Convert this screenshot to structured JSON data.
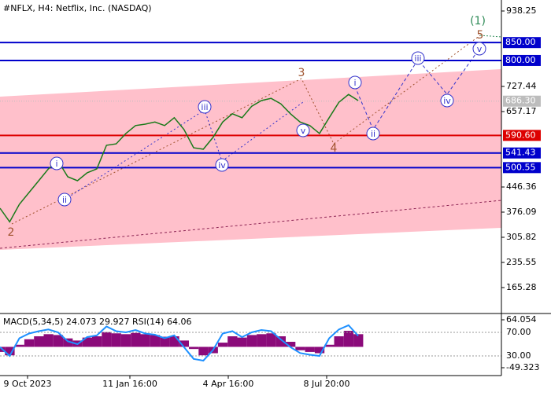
{
  "chart_data": [
    {
      "type": "line",
      "title": "#NFLX, H4:  Netflix, Inc. (NASDAQ)",
      "color": "#1a7a1a",
      "values": [
        387,
        349,
        398,
        431,
        464,
        497,
        519,
        475,
        464,
        486,
        497,
        563,
        567,
        596,
        618,
        622,
        628,
        618,
        640,
        607,
        556,
        552,
        585,
        628,
        651,
        640,
        672,
        688,
        694,
        679,
        651,
        628,
        618,
        596,
        640,
        683,
        705,
        688
      ],
      "ylim": [
        95.01,
        968.99
      ],
      "yticks": [
        938.25,
        727.44,
        657.17,
        446.36,
        376.09,
        305.82,
        235.55,
        165.28
      ],
      "levels": [
        {
          "value": 850,
          "label": "850.00",
          "color": "#0000cc"
        },
        {
          "value": 800,
          "label": "800.00",
          "color": "#0000cc"
        },
        {
          "value": 590.6,
          "label": "590.60",
          "color": "#dd0000"
        },
        {
          "value": 541.43,
          "label": "541.43",
          "color": "#0000cc"
        },
        {
          "value": 500.55,
          "label": "500.55",
          "color": "#0000cc"
        }
      ],
      "current": {
        "value": 686.3,
        "label": "686.30",
        "color": "#bdbdbd"
      },
      "x_labels": [
        "9 Oct 2023",
        "11 Jan 16:00",
        "4 Apr 16:00",
        "8 Jul 20:00"
      ],
      "wave_labels": [
        "2",
        "3",
        "4",
        "5",
        "(1)"
      ],
      "circle_labels": [
        "i",
        "ii",
        "iii",
        "iv",
        "v",
        "i",
        "ii",
        "iii",
        "iv",
        "v"
      ]
    },
    {
      "type": "bar",
      "title": "MACD(5,34,5) 24.073 29.927 RSI(14) 64.06",
      "color": "#8b0a7a",
      "values": [
        -12,
        -20,
        5,
        18,
        25,
        30,
        28,
        20,
        15,
        22,
        25,
        35,
        32,
        30,
        33,
        30,
        28,
        24,
        25,
        15,
        -5,
        -20,
        -15,
        10,
        25,
        22,
        28,
        30,
        32,
        25,
        12,
        -8,
        -12,
        -15,
        5,
        25,
        38,
        30
      ],
      "ylim": [
        -49.323,
        64.054
      ],
      "yticks": [
        64.054,
        -49.323
      ],
      "rsi": {
        "axis": "y2",
        "color": "#1e90ff",
        "values": [
          45,
          30,
          60,
          68,
          72,
          75,
          70,
          55,
          50,
          62,
          65,
          80,
          72,
          70,
          74,
          68,
          66,
          60,
          65,
          45,
          25,
          22,
          40,
          68,
          72,
          62,
          70,
          74,
          72,
          58,
          45,
          35,
          32,
          30,
          60,
          75,
          82,
          64
        ]
      },
      "y2lim": [
        0,
        100
      ],
      "y2ticks": [
        {
          "value": 70,
          "label": "70.00"
        },
        {
          "value": 30,
          "label": "30.00"
        }
      ]
    }
  ]
}
